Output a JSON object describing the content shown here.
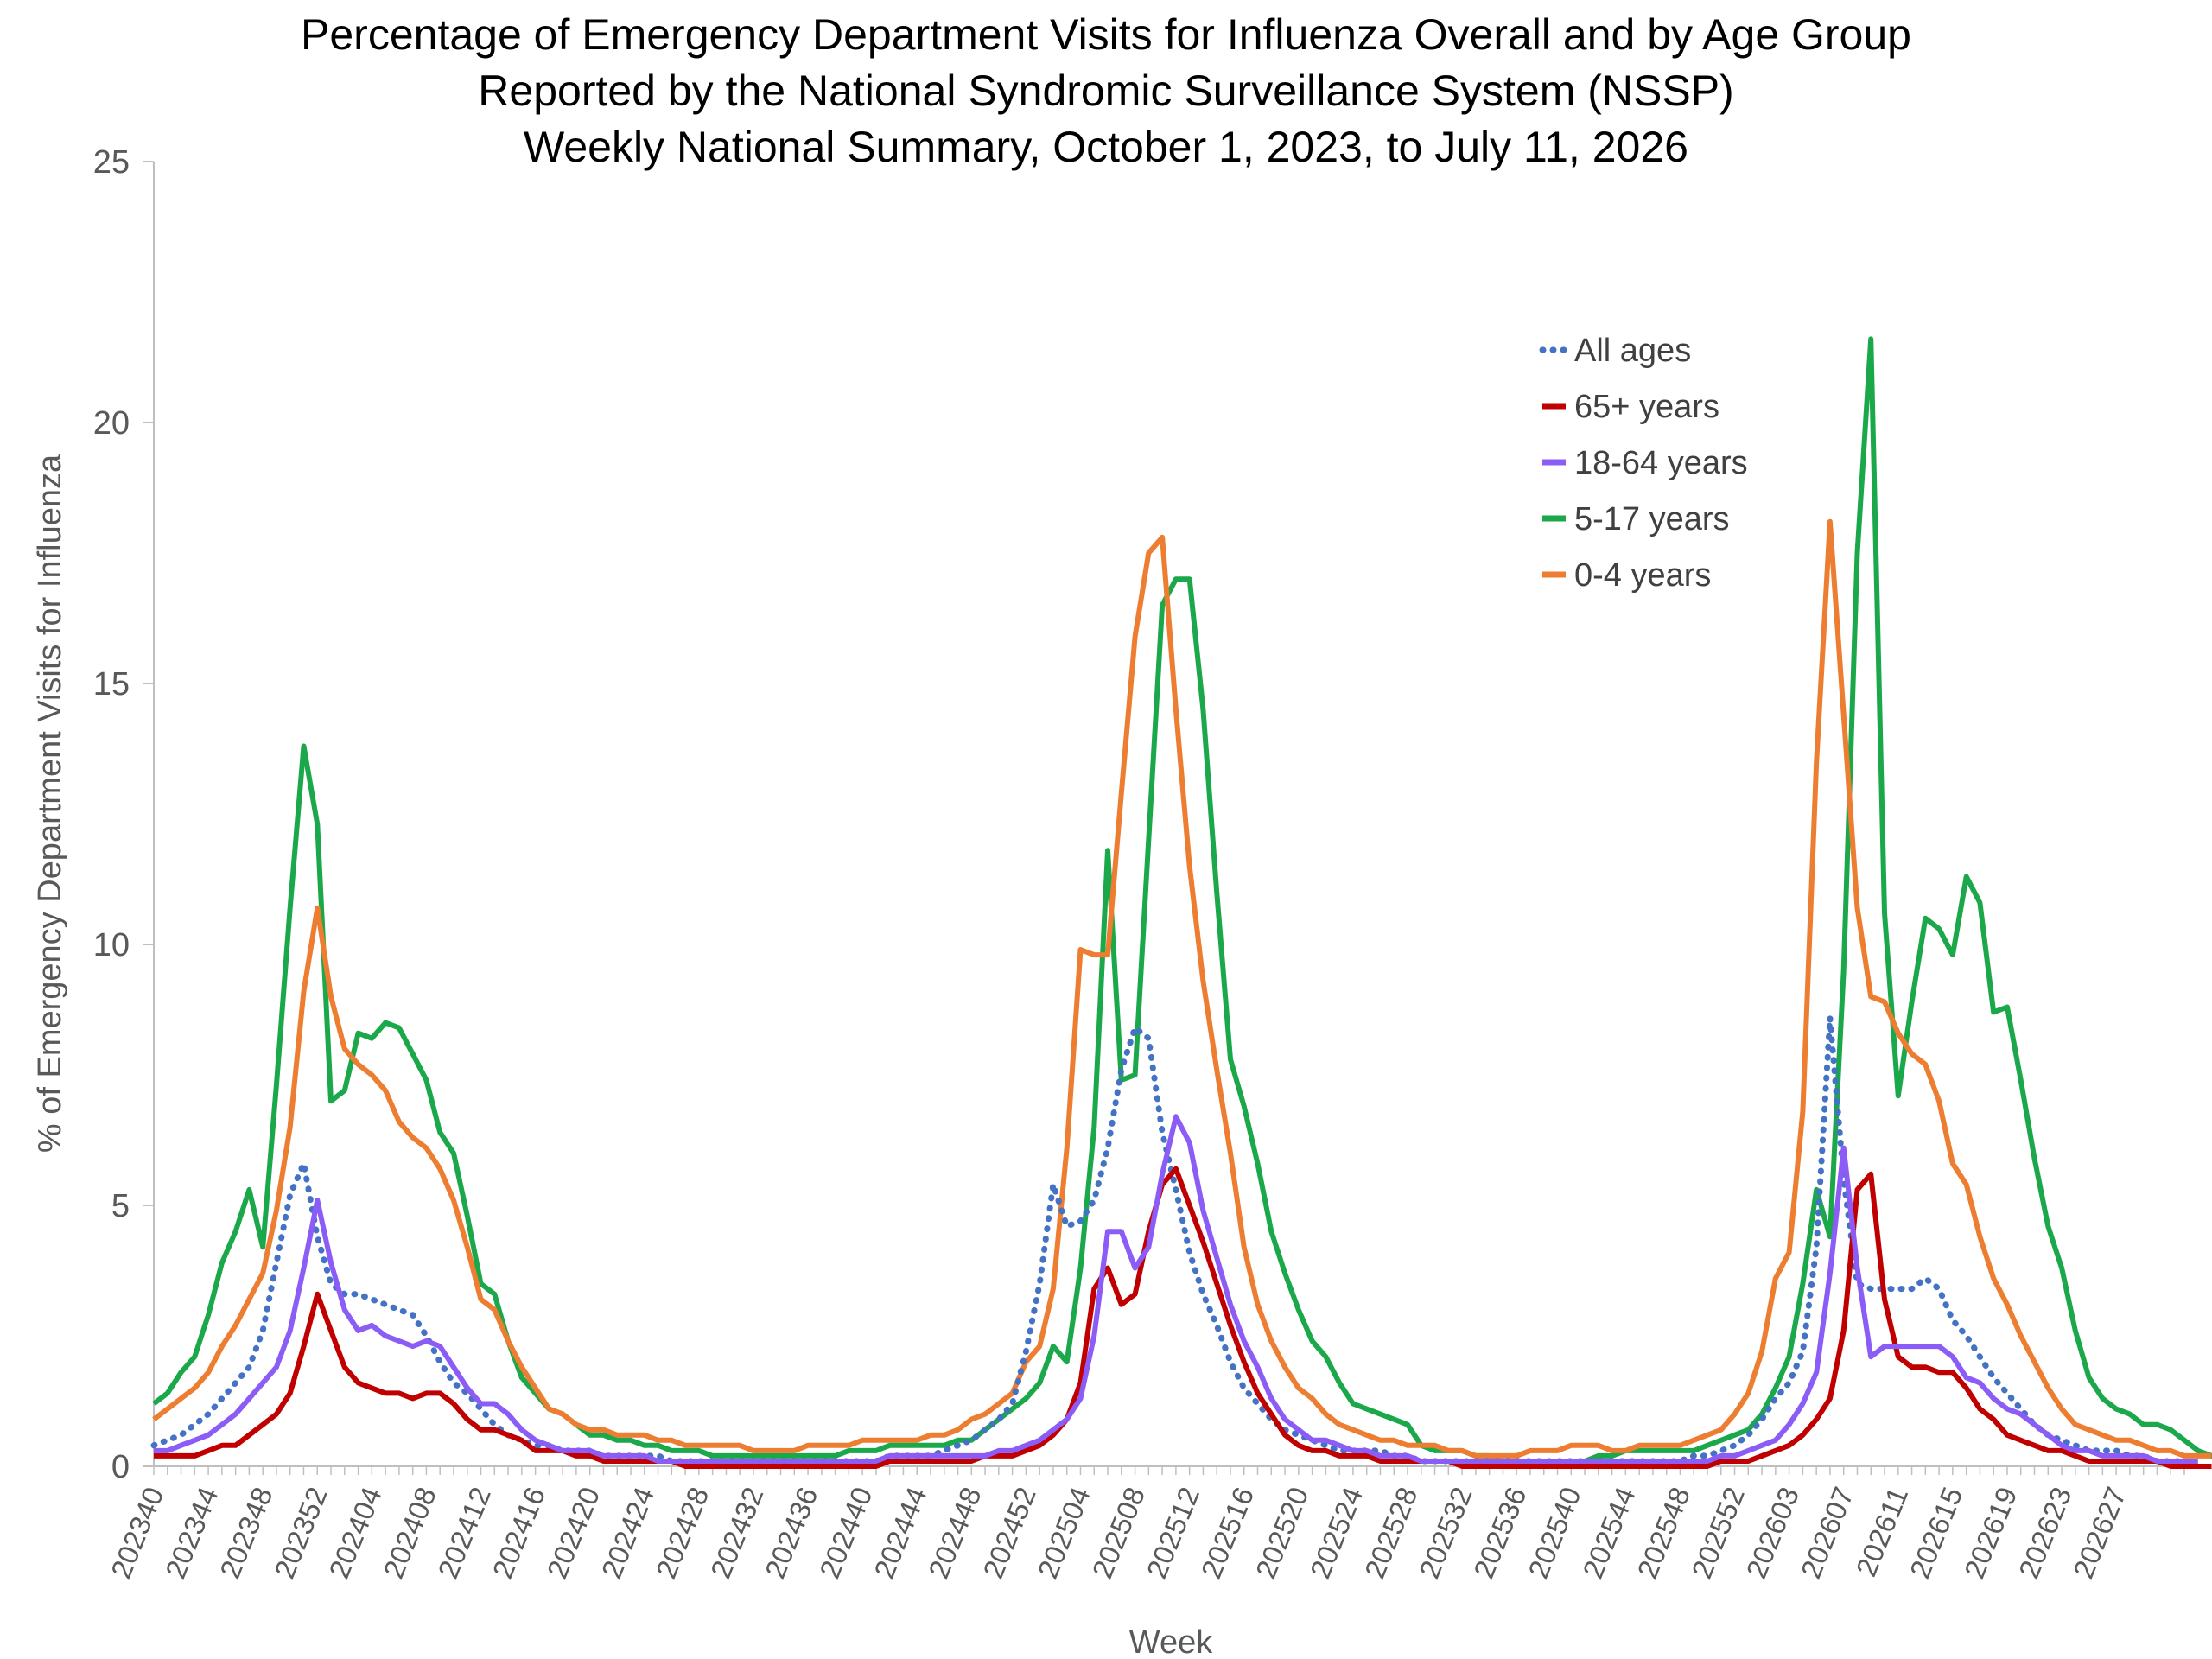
{
  "chart_data": {
    "type": "line",
    "title": [
      "Percentage of Emergency Department Visits for Influenza Overall and by Age Group",
      "Reported by the National Syndromic Surveillance System (NSSP)",
      "Weekly National Summary, October 1, 2023, to July 11, 2026"
    ],
    "xlabel": "Week",
    "ylabel": "% of Emergency Department Visits for Influenza",
    "ylim": [
      0,
      25
    ],
    "yticks": [
      0,
      5,
      10,
      15,
      20,
      25
    ],
    "legend_position": "top-right",
    "grid": false,
    "x_tick_labels": [
      "202340",
      "202344",
      "202348",
      "202352",
      "202404",
      "202408",
      "202412",
      "202416",
      "202420",
      "202424",
      "202428",
      "202432",
      "202436",
      "202440",
      "202444",
      "202448",
      "202452",
      "202504",
      "202508",
      "202512",
      "202516",
      "202520",
      "202524",
      "202528",
      "202532",
      "202536",
      "202540",
      "202544",
      "202548",
      "202552",
      "202603",
      "202607",
      "202611",
      "202615",
      "202619",
      "202623",
      "202627"
    ],
    "series": [
      {
        "name": "All ages",
        "color": "#4472C4",
        "style": "dotted",
        "values": [
          0.4,
          0.5,
          0.6,
          0.8,
          1.0,
          1.3,
          1.6,
          1.9,
          2.6,
          3.9,
          5.2,
          5.8,
          4.4,
          3.5,
          3.3,
          3.3,
          3.2,
          3.1,
          3.0,
          2.9,
          2.5,
          2.0,
          1.6,
          1.4,
          1.1,
          0.8,
          0.6,
          0.5,
          0.4,
          0.4,
          0.3,
          0.3,
          0.3,
          0.2,
          0.2,
          0.2,
          0.2,
          0.2,
          0.1,
          0.1,
          0.1,
          0.1,
          0.1,
          0.1,
          0.1,
          0.1,
          0.1,
          0.1,
          0.1,
          0.1,
          0.1,
          0.1,
          0.1,
          0.1,
          0.2,
          0.2,
          0.2,
          0.2,
          0.3,
          0.4,
          0.5,
          0.7,
          0.9,
          1.2,
          2.2,
          3.5,
          5.4,
          4.6,
          4.7,
          5.1,
          6.1,
          7.6,
          8.4,
          8.2,
          6.4,
          5.3,
          4.1,
          3.3,
          2.7,
          2.0,
          1.5,
          1.2,
          0.9,
          0.7,
          0.6,
          0.5,
          0.4,
          0.3,
          0.3,
          0.3,
          0.3,
          0.2,
          0.2,
          0.1,
          0.1,
          0.1,
          0.1,
          0.1,
          0.1,
          0.1,
          0.1,
          0.1,
          0.1,
          0.1,
          0.1,
          0.1,
          0.1,
          0.1,
          0.1,
          0.1,
          0.1,
          0.1,
          0.1,
          0.2,
          0.2,
          0.3,
          0.4,
          0.6,
          0.9,
          1.3,
          1.6,
          2.2,
          4.2,
          8.6,
          5.5,
          3.5,
          3.4,
          3.4,
          3.4,
          3.4,
          3.6,
          3.4,
          2.8,
          2.5,
          2.1,
          1.7,
          1.4,
          1.1,
          0.8,
          0.6,
          0.5,
          0.4,
          0.3,
          0.3,
          0.3,
          0.2,
          0.2,
          0.1,
          0.1,
          0.1
        ]
      },
      {
        "name": "65+ years",
        "color": "#C00000",
        "style": "solid",
        "values": [
          0.2,
          0.2,
          0.2,
          0.2,
          0.3,
          0.4,
          0.4,
          0.6,
          0.8,
          1.0,
          1.4,
          2.3,
          3.3,
          2.6,
          1.9,
          1.6,
          1.5,
          1.4,
          1.4,
          1.3,
          1.4,
          1.4,
          1.2,
          0.9,
          0.7,
          0.7,
          0.6,
          0.5,
          0.3,
          0.3,
          0.3,
          0.2,
          0.2,
          0.1,
          0.1,
          0.1,
          0.1,
          0.1,
          0.1,
          0.0,
          0.0,
          0.0,
          0.0,
          0.0,
          0.0,
          0.0,
          0.0,
          0.0,
          0.0,
          0.0,
          0.0,
          0.0,
          0.0,
          0.0,
          0.1,
          0.1,
          0.1,
          0.1,
          0.1,
          0.1,
          0.1,
          0.2,
          0.2,
          0.2,
          0.3,
          0.4,
          0.6,
          0.9,
          1.6,
          3.4,
          3.8,
          3.1,
          3.3,
          4.5,
          5.4,
          5.7,
          5.0,
          4.3,
          3.5,
          2.7,
          2.0,
          1.4,
          1.0,
          0.6,
          0.4,
          0.3,
          0.3,
          0.2,
          0.2,
          0.2,
          0.1,
          0.1,
          0.1,
          0.1,
          0.1,
          0.1,
          0.0,
          0.0,
          0.0,
          0.0,
          0.0,
          0.0,
          0.0,
          0.0,
          0.0,
          0.0,
          0.0,
          0.0,
          0.0,
          0.0,
          0.0,
          0.0,
          0.0,
          0.0,
          0.0,
          0.1,
          0.1,
          0.1,
          0.2,
          0.3,
          0.4,
          0.6,
          0.9,
          1.3,
          2.6,
          5.3,
          5.6,
          3.2,
          2.1,
          1.9,
          1.9,
          1.8,
          1.8,
          1.5,
          1.1,
          0.9,
          0.6,
          0.5,
          0.4,
          0.3,
          0.3,
          0.2,
          0.1,
          0.1,
          0.1,
          0.1,
          0.1,
          0.1,
          0.0,
          0.0,
          0.0,
          0.0
        ]
      },
      {
        "name": "18-64 years",
        "color": "#8B5CF6",
        "style": "solid",
        "values": [
          0.3,
          0.3,
          0.4,
          0.5,
          0.6,
          0.8,
          1.0,
          1.3,
          1.6,
          1.9,
          2.6,
          3.8,
          5.1,
          3.9,
          3.0,
          2.6,
          2.7,
          2.5,
          2.4,
          2.3,
          2.4,
          2.3,
          1.9,
          1.5,
          1.2,
          1.2,
          1.0,
          0.7,
          0.5,
          0.4,
          0.3,
          0.3,
          0.3,
          0.2,
          0.2,
          0.2,
          0.2,
          0.1,
          0.1,
          0.1,
          0.1,
          0.1,
          0.1,
          0.1,
          0.1,
          0.1,
          0.1,
          0.1,
          0.1,
          0.1,
          0.1,
          0.1,
          0.1,
          0.1,
          0.2,
          0.2,
          0.2,
          0.2,
          0.2,
          0.2,
          0.2,
          0.2,
          0.3,
          0.3,
          0.4,
          0.5,
          0.7,
          0.9,
          1.3,
          2.5,
          4.5,
          4.5,
          3.8,
          4.2,
          5.6,
          6.7,
          6.2,
          4.9,
          4.0,
          3.1,
          2.4,
          1.9,
          1.3,
          0.9,
          0.7,
          0.5,
          0.5,
          0.4,
          0.3,
          0.3,
          0.2,
          0.2,
          0.2,
          0.1,
          0.1,
          0.1,
          0.1,
          0.1,
          0.1,
          0.1,
          0.1,
          0.1,
          0.1,
          0.1,
          0.1,
          0.1,
          0.1,
          0.1,
          0.1,
          0.1,
          0.1,
          0.1,
          0.1,
          0.1,
          0.1,
          0.2,
          0.2,
          0.3,
          0.4,
          0.5,
          0.8,
          1.2,
          1.8,
          3.7,
          6.1,
          3.8,
          2.1,
          2.3,
          2.3,
          2.3,
          2.3,
          2.3,
          2.1,
          1.7,
          1.6,
          1.3,
          1.1,
          1.0,
          0.8,
          0.6,
          0.4,
          0.3,
          0.3,
          0.2,
          0.2,
          0.2,
          0.2,
          0.1,
          0.1,
          0.1,
          0.1
        ]
      },
      {
        "name": "5-17 years",
        "color": "#1BA84A",
        "style": "solid",
        "values": [
          1.2,
          1.4,
          1.8,
          2.1,
          2.9,
          3.9,
          4.5,
          5.3,
          4.2,
          7.3,
          10.7,
          13.8,
          12.3,
          7.0,
          7.2,
          8.3,
          8.2,
          8.5,
          8.4,
          7.9,
          7.4,
          6.4,
          6.0,
          4.8,
          3.5,
          3.3,
          2.4,
          1.7,
          1.4,
          1.1,
          1.0,
          0.8,
          0.6,
          0.6,
          0.5,
          0.5,
          0.4,
          0.4,
          0.3,
          0.3,
          0.3,
          0.2,
          0.2,
          0.2,
          0.2,
          0.2,
          0.2,
          0.2,
          0.2,
          0.2,
          0.2,
          0.3,
          0.3,
          0.3,
          0.4,
          0.4,
          0.4,
          0.4,
          0.4,
          0.5,
          0.5,
          0.7,
          0.9,
          1.1,
          1.3,
          1.6,
          2.3,
          2.0,
          3.8,
          6.5,
          11.8,
          7.4,
          7.5,
          12.0,
          16.5,
          17.0,
          17.0,
          14.5,
          11.0,
          7.8,
          6.9,
          5.8,
          4.5,
          3.7,
          3.0,
          2.4,
          2.1,
          1.6,
          1.2,
          1.1,
          1.0,
          0.9,
          0.8,
          0.4,
          0.3,
          0.3,
          0.3,
          0.2,
          0.2,
          0.1,
          0.1,
          0.1,
          0.1,
          0.1,
          0.1,
          0.1,
          0.2,
          0.2,
          0.3,
          0.3,
          0.3,
          0.3,
          0.3,
          0.3,
          0.4,
          0.5,
          0.6,
          0.7,
          1.0,
          1.5,
          2.1,
          3.5,
          5.3,
          4.4,
          9.5,
          17.5,
          21.6,
          10.6,
          7.1,
          8.9,
          10.5,
          10.3,
          9.8,
          11.3,
          10.8,
          8.7,
          8.8,
          7.4,
          5.9,
          4.6,
          3.8,
          2.6,
          1.7,
          1.3,
          1.1,
          1.0,
          0.8,
          0.8,
          0.7,
          0.5,
          0.3,
          0.2,
          0.1,
          0.1
        ]
      },
      {
        "name": "0-4 years",
        "color": "#ED7D31",
        "style": "solid",
        "values": [
          0.9,
          1.1,
          1.3,
          1.5,
          1.8,
          2.3,
          2.7,
          3.2,
          3.7,
          4.9,
          6.5,
          9.1,
          10.7,
          9.0,
          8.0,
          7.7,
          7.5,
          7.2,
          6.6,
          6.3,
          6.1,
          5.7,
          5.1,
          4.2,
          3.2,
          3.0,
          2.4,
          1.9,
          1.5,
          1.1,
          1.0,
          0.8,
          0.7,
          0.7,
          0.6,
          0.6,
          0.6,
          0.5,
          0.5,
          0.4,
          0.4,
          0.4,
          0.4,
          0.4,
          0.3,
          0.3,
          0.3,
          0.3,
          0.4,
          0.4,
          0.4,
          0.4,
          0.5,
          0.5,
          0.5,
          0.5,
          0.5,
          0.6,
          0.6,
          0.7,
          0.9,
          1.0,
          1.2,
          1.4,
          2.0,
          2.3,
          3.4,
          6.1,
          9.9,
          9.8,
          9.8,
          12.9,
          15.9,
          17.5,
          17.8,
          14.5,
          11.5,
          9.3,
          7.6,
          6.0,
          4.2,
          3.1,
          2.4,
          1.9,
          1.5,
          1.3,
          1.0,
          0.8,
          0.7,
          0.6,
          0.5,
          0.5,
          0.4,
          0.4,
          0.4,
          0.3,
          0.3,
          0.2,
          0.2,
          0.2,
          0.2,
          0.3,
          0.3,
          0.3,
          0.4,
          0.4,
          0.4,
          0.3,
          0.3,
          0.4,
          0.4,
          0.4,
          0.4,
          0.5,
          0.6,
          0.7,
          1.0,
          1.4,
          2.2,
          3.6,
          4.1,
          6.8,
          13.5,
          18.1,
          14.4,
          10.7,
          9.0,
          8.9,
          8.3,
          7.9,
          7.7,
          7.0,
          5.8,
          5.4,
          4.4,
          3.6,
          3.1,
          2.5,
          2.0,
          1.5,
          1.1,
          0.8,
          0.7,
          0.6,
          0.5,
          0.5,
          0.4,
          0.3,
          0.3,
          0.2,
          0.2,
          0.2
        ]
      }
    ]
  }
}
